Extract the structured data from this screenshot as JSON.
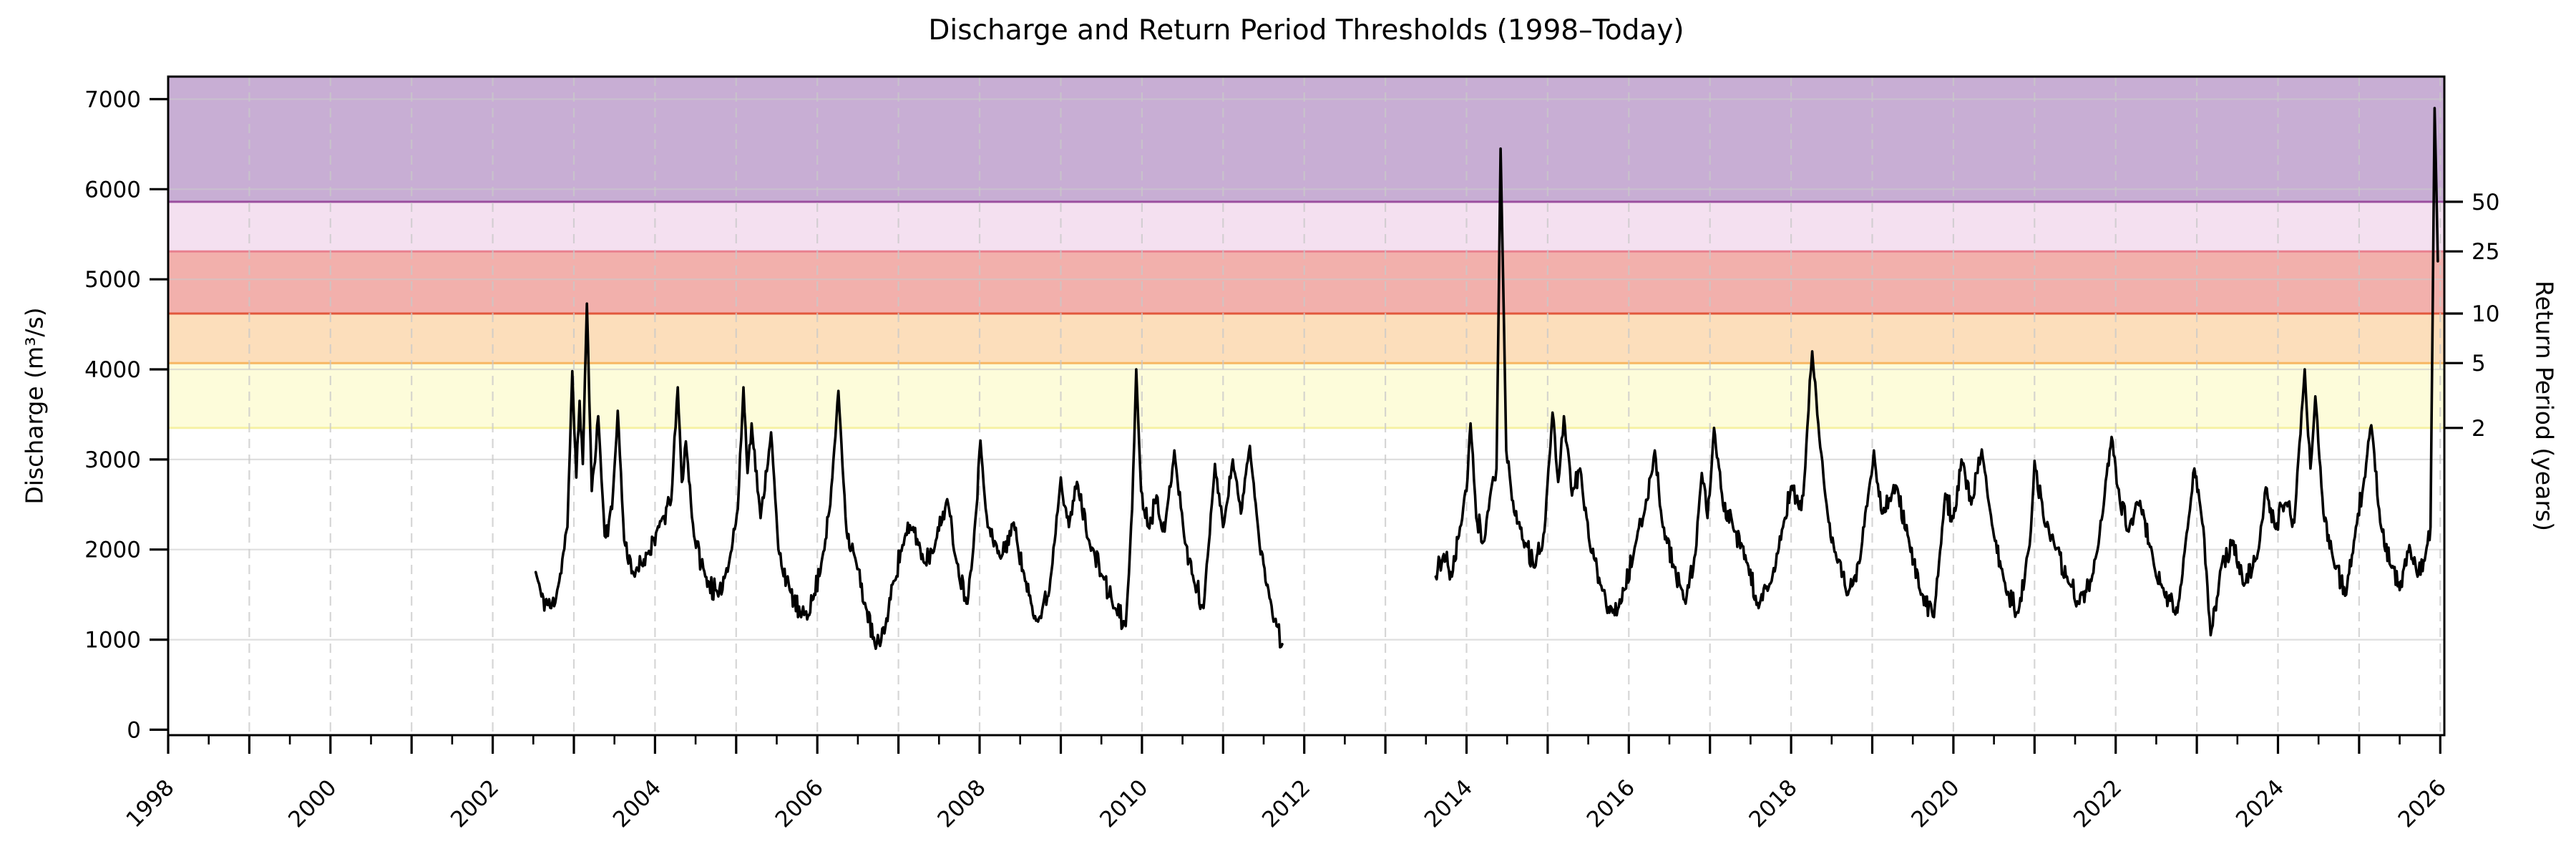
{
  "title": "Discharge and Return Period Thresholds (1998–Today)",
  "axes": {
    "y_label": "Discharge (m³/s)",
    "y2_label": "Return Period (years)",
    "x_tick_labels": [
      "1998",
      "2000",
      "2002",
      "2004",
      "2006",
      "2008",
      "2010",
      "2012",
      "2014",
      "2016",
      "2018",
      "2020",
      "2022",
      "2024",
      "2026"
    ],
    "y_tick_labels": [
      "0",
      "1000",
      "2000",
      "3000",
      "4000",
      "5000",
      "6000",
      "7000"
    ],
    "y2_tick_labels": [
      "2",
      "5",
      "10",
      "25",
      "50"
    ]
  },
  "colors": {
    "data_line": "#000000",
    "frame": "#000000",
    "grid_horizontal": "#c9c9c9",
    "grid_vertical": "#c8c8c8",
    "background": "#ffffff"
  },
  "chart_data": {
    "type": "line",
    "title": "Discharge and Return Period Thresholds (1998–Today)",
    "xlabel": "",
    "ylabel": "Discharge (m³/s)",
    "y2label": "Return Period (years)",
    "xlim": [
      1998,
      2026.05
    ],
    "ylim": [
      -60,
      7250
    ],
    "x_major_tick_step_years": 1,
    "x_minor_tick_step_years": 0.5,
    "x_label_step_years": 2,
    "y_ticks": [
      0,
      1000,
      2000,
      3000,
      4000,
      5000,
      6000,
      7000
    ],
    "grid": {
      "horizontal": "solid",
      "vertical": "dashed-yearly"
    },
    "legend": "none",
    "thresholds": [
      {
        "return_period": 2,
        "discharge": 3350,
        "band_top": 4070,
        "line_color": "#f6f1a4",
        "band_color": "#fdfcda"
      },
      {
        "return_period": 5,
        "discharge": 4070,
        "band_top": 4620,
        "line_color": "#f7b763",
        "band_color": "#fcdebb"
      },
      {
        "return_period": 10,
        "discharge": 4620,
        "band_top": 5310,
        "line_color": "#e2573c",
        "band_color": "#f2b0ac"
      },
      {
        "return_period": 25,
        "discharge": 5310,
        "band_top": 5860,
        "line_color": "#e8808f",
        "band_color": "#f4e0f0"
      },
      {
        "return_period": 50,
        "discharge": 5860,
        "band_top": 7250,
        "line_color": "#9b4f9f",
        "band_color": "#c8aed4"
      }
    ],
    "series": [
      {
        "name": "Discharge",
        "color": "#000000",
        "segments": [
          {
            "anchors": [
              [
                2002.53,
                1750
              ],
              [
                2002.6,
                1480
              ],
              [
                2002.72,
                1350
              ],
              [
                2002.82,
                1650
              ],
              [
                2002.92,
                2250
              ],
              [
                2002.98,
                3980
              ],
              [
                2003.03,
                2800
              ],
              [
                2003.07,
                3650
              ],
              [
                2003.11,
                2950
              ],
              [
                2003.16,
                4730
              ],
              [
                2003.22,
                2650
              ],
              [
                2003.3,
                3480
              ],
              [
                2003.38,
                2150
              ],
              [
                2003.47,
                2450
              ],
              [
                2003.54,
                3540
              ],
              [
                2003.62,
                2100
              ],
              [
                2003.75,
                1700
              ],
              [
                2003.9,
                1950
              ],
              [
                2004.05,
                2250
              ],
              [
                2004.2,
                2550
              ],
              [
                2004.28,
                3800
              ],
              [
                2004.33,
                2750
              ],
              [
                2004.38,
                3200
              ],
              [
                2004.48,
                2150
              ],
              [
                2004.62,
                1700
              ],
              [
                2004.78,
                1480
              ],
              [
                2004.92,
                1900
              ],
              [
                2005.02,
                2450
              ],
              [
                2005.09,
                3800
              ],
              [
                2005.14,
                2850
              ],
              [
                2005.19,
                3400
              ],
              [
                2005.3,
                2350
              ],
              [
                2005.43,
                3300
              ],
              [
                2005.52,
                2000
              ],
              [
                2005.66,
                1550
              ],
              [
                2005.8,
                1250
              ],
              [
                2005.95,
                1450
              ],
              [
                2006.05,
                1850
              ],
              [
                2006.16,
                2500
              ],
              [
                2006.26,
                3760
              ],
              [
                2006.36,
                2200
              ],
              [
                2006.48,
                1850
              ],
              [
                2006.6,
                1350
              ],
              [
                2006.72,
                900
              ],
              [
                2006.84,
                1150
              ],
              [
                2006.94,
                1650
              ],
              [
                2007.05,
                2050
              ],
              [
                2007.18,
                2250
              ],
              [
                2007.32,
                1850
              ],
              [
                2007.46,
                2100
              ],
              [
                2007.6,
                2560
              ],
              [
                2007.72,
                1850
              ],
              [
                2007.85,
                1400
              ],
              [
                2007.96,
                2450
              ],
              [
                2008.01,
                3210
              ],
              [
                2008.1,
                2250
              ],
              [
                2008.26,
                1900
              ],
              [
                2008.42,
                2300
              ],
              [
                2008.56,
                1650
              ],
              [
                2008.72,
                1200
              ],
              [
                2008.86,
                1550
              ],
              [
                2009.0,
                2800
              ],
              [
                2009.1,
                2250
              ],
              [
                2009.2,
                2750
              ],
              [
                2009.36,
                2050
              ],
              [
                2009.52,
                1700
              ],
              [
                2009.66,
                1350
              ],
              [
                2009.8,
                1150
              ],
              [
                2009.88,
                2450
              ],
              [
                2009.93,
                4000
              ],
              [
                2009.99,
                2650
              ],
              [
                2010.08,
                2250
              ],
              [
                2010.18,
                2600
              ],
              [
                2010.28,
                2200
              ],
              [
                2010.4,
                3100
              ],
              [
                2010.52,
                2150
              ],
              [
                2010.64,
                1650
              ],
              [
                2010.76,
                1350
              ],
              [
                2010.9,
                2950
              ],
              [
                2011.0,
                2250
              ],
              [
                2011.12,
                3000
              ],
              [
                2011.22,
                2400
              ],
              [
                2011.33,
                3150
              ],
              [
                2011.45,
                2050
              ],
              [
                2011.56,
                1550
              ],
              [
                2011.66,
                1150
              ],
              [
                2011.73,
                950
              ]
            ]
          },
          {
            "anchors": [
              [
                2013.62,
                1700
              ],
              [
                2013.72,
                1950
              ],
              [
                2013.82,
                1700
              ],
              [
                2013.92,
                2250
              ],
              [
                2014.0,
                2650
              ],
              [
                2014.05,
                3400
              ],
              [
                2014.12,
                2350
              ],
              [
                2014.22,
                2100
              ],
              [
                2014.3,
                2650
              ],
              [
                2014.37,
                2900
              ],
              [
                2014.42,
                6450
              ],
              [
                2014.49,
                3100
              ],
              [
                2014.56,
                2550
              ],
              [
                2014.7,
                2100
              ],
              [
                2014.84,
                1800
              ],
              [
                2014.96,
                2200
              ],
              [
                2015.06,
                3520
              ],
              [
                2015.13,
                2750
              ],
              [
                2015.2,
                3480
              ],
              [
                2015.3,
                2600
              ],
              [
                2015.4,
                2900
              ],
              [
                2015.52,
                2050
              ],
              [
                2015.66,
                1600
              ],
              [
                2015.8,
                1300
              ],
              [
                2015.94,
                1550
              ],
              [
                2016.06,
                1950
              ],
              [
                2016.2,
                2450
              ],
              [
                2016.32,
                3100
              ],
              [
                2016.42,
                2250
              ],
              [
                2016.56,
                1800
              ],
              [
                2016.7,
                1400
              ],
              [
                2016.82,
                1950
              ],
              [
                2016.9,
                2850
              ],
              [
                2016.97,
                2350
              ],
              [
                2017.05,
                3350
              ],
              [
                2017.16,
                2500
              ],
              [
                2017.3,
                2200
              ],
              [
                2017.46,
                1850
              ],
              [
                2017.6,
                1350
              ],
              [
                2017.76,
                1650
              ],
              [
                2017.9,
                2250
              ],
              [
                2018.0,
                2700
              ],
              [
                2018.1,
                2450
              ],
              [
                2018.15,
                2600
              ],
              [
                2018.2,
                3360
              ],
              [
                2018.26,
                4200
              ],
              [
                2018.36,
                3130
              ],
              [
                2018.45,
                2400
              ],
              [
                2018.56,
                1900
              ],
              [
                2018.7,
                1500
              ],
              [
                2018.84,
                1850
              ],
              [
                2018.95,
                2600
              ],
              [
                2019.02,
                3100
              ],
              [
                2019.12,
                2400
              ],
              [
                2019.3,
                2700
              ],
              [
                2019.46,
                2050
              ],
              [
                2019.6,
                1500
              ],
              [
                2019.76,
                1250
              ],
              [
                2019.9,
                2620
              ],
              [
                2020.0,
                2350
              ],
              [
                2020.1,
                3000
              ],
              [
                2020.22,
                2500
              ],
              [
                2020.35,
                3110
              ],
              [
                2020.5,
                2150
              ],
              [
                2020.66,
                1500
              ],
              [
                2020.8,
                1300
              ],
              [
                2020.94,
                2050
              ],
              [
                2021.0,
                2985
              ],
              [
                2021.12,
                2300
              ],
              [
                2021.26,
                2000
              ],
              [
                2021.4,
                1700
              ],
              [
                2021.54,
                1400
              ],
              [
                2021.7,
                1650
              ],
              [
                2021.84,
                2400
              ],
              [
                2021.95,
                3250
              ],
              [
                2022.05,
                2550
              ],
              [
                2022.16,
                2200
              ],
              [
                2022.3,
                2540
              ],
              [
                2022.46,
                1900
              ],
              [
                2022.6,
                1500
              ],
              [
                2022.76,
                1300
              ],
              [
                2022.9,
                2350
              ],
              [
                2022.97,
                2900
              ],
              [
                2023.08,
                2250
              ],
              [
                2023.17,
                1050
              ],
              [
                2023.3,
                1800
              ],
              [
                2023.44,
                2100
              ],
              [
                2023.58,
                1600
              ],
              [
                2023.74,
                1900
              ],
              [
                2023.85,
                2690
              ],
              [
                2023.96,
                2250
              ],
              [
                2024.08,
                2500
              ],
              [
                2024.2,
                2300
              ],
              [
                2024.33,
                4000
              ],
              [
                2024.4,
                2900
              ],
              [
                2024.46,
                3700
              ],
              [
                2024.56,
                2400
              ],
              [
                2024.7,
                1800
              ],
              [
                2024.84,
                1500
              ],
              [
                2024.96,
                2250
              ],
              [
                2025.05,
                2700
              ],
              [
                2025.15,
                3380
              ],
              [
                2025.26,
                2300
              ],
              [
                2025.4,
                1800
              ],
              [
                2025.5,
                1550
              ],
              [
                2025.62,
                2050
              ],
              [
                2025.72,
                1700
              ],
              [
                2025.82,
                1950
              ],
              [
                2025.88,
                2250
              ],
              [
                2025.93,
                6900
              ],
              [
                2025.97,
                5200
              ]
            ]
          }
        ]
      }
    ],
    "noise": {
      "amplitude": 190,
      "step": 0.012,
      "seed": 11,
      "clamp_min": 760,
      "clamp_max": 7100
    }
  }
}
